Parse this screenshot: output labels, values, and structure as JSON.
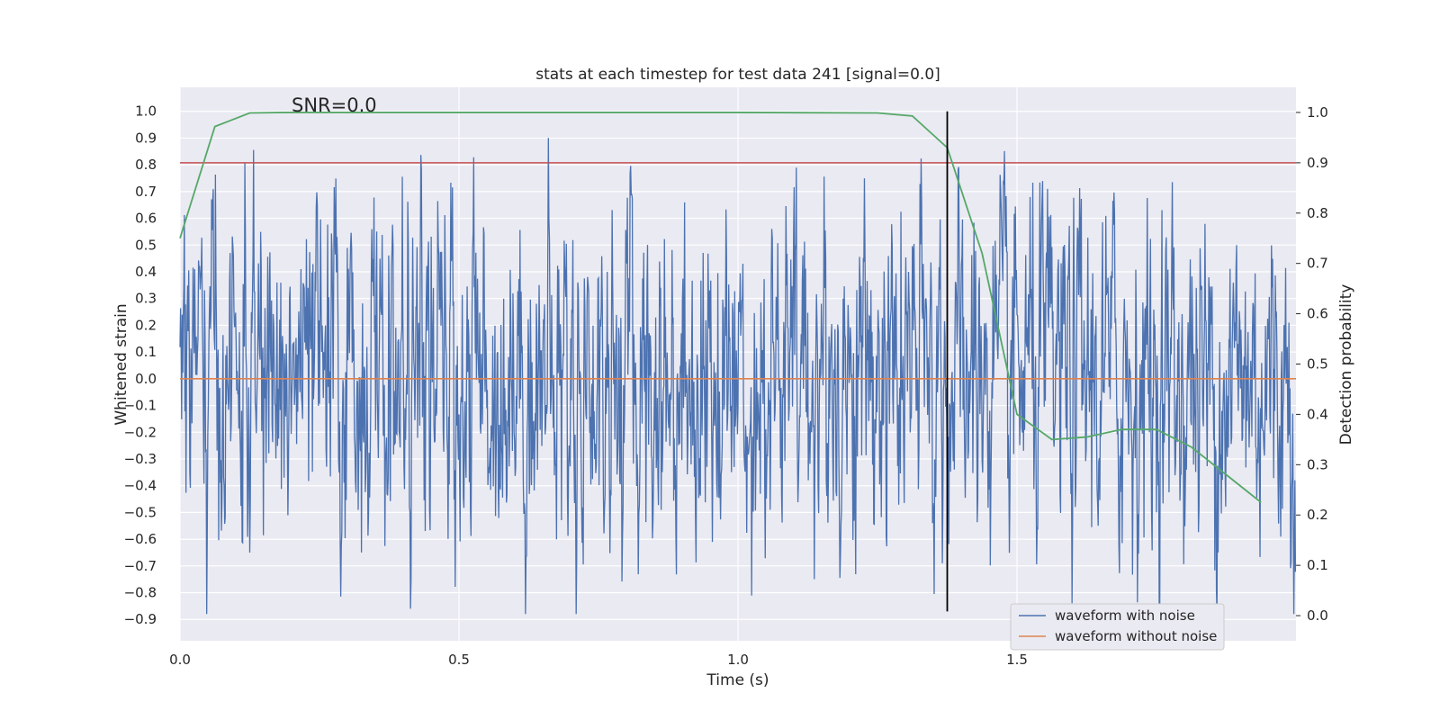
{
  "chart_data": {
    "type": "line",
    "title": "stats at each timestep for test data 241 [signal=0.0]",
    "xlabel": "Time (s)",
    "ylabel": "Whitened strain",
    "y2label": "Detection probability",
    "annotation": "SNR=0.0",
    "xlim": [
      0.0,
      2.0
    ],
    "ylim": [
      -0.98,
      1.09
    ],
    "y2lim": [
      -0.05,
      1.05
    ],
    "xticks": [
      "0.0",
      "0.5",
      "1.0",
      "1.5"
    ],
    "yticks": [
      "1.0",
      "0.9",
      "0.8",
      "0.7",
      "0.6",
      "0.5",
      "0.4",
      "0.3",
      "0.2",
      "0.1",
      "0.0",
      "−0.1",
      "−0.2",
      "−0.3",
      "−0.4",
      "−0.5",
      "−0.6",
      "−0.7",
      "−0.8",
      "−0.9"
    ],
    "y2ticks": [
      "1.0",
      "0.9",
      "0.8",
      "0.7",
      "0.6",
      "0.5",
      "0.4",
      "0.3",
      "0.2",
      "0.1",
      "0.0"
    ],
    "grid": true,
    "legend_location": "lower right",
    "series": [
      {
        "name": "waveform with noise",
        "color": "#4c72b0",
        "axis": "left",
        "kind": "noise",
        "n_samples": 2048,
        "range": [
          -0.88,
          1.0
        ]
      },
      {
        "name": "waveform without noise",
        "color": "#dd8452",
        "axis": "left",
        "kind": "line",
        "x": [
          0.0,
          2.0
        ],
        "y": [
          0.0,
          0.0
        ]
      },
      {
        "color": "#55a868",
        "axis": "right",
        "kind": "line",
        "x": [
          0.0,
          0.0625,
          0.125,
          0.1875,
          0.25,
          0.5,
          0.75,
          1.0,
          1.25,
          1.3125,
          1.375,
          1.4375,
          1.5,
          1.5625,
          1.625,
          1.6875,
          1.75,
          1.8125,
          1.875,
          1.9375
        ],
        "y": [
          0.75,
          0.972,
          0.999,
          1.0,
          1.0,
          1.0,
          1.0,
          1.0,
          0.999,
          0.993,
          0.93,
          0.72,
          0.4,
          0.35,
          0.355,
          0.37,
          0.37,
          0.335,
          0.28,
          0.225
        ]
      },
      {
        "color": "#c44e52",
        "axis": "right",
        "kind": "hline",
        "y": 0.9
      },
      {
        "color": "#000000",
        "axis": "left",
        "kind": "vline",
        "x": 1.375,
        "y": [
          -0.87,
          1.0
        ]
      }
    ]
  }
}
